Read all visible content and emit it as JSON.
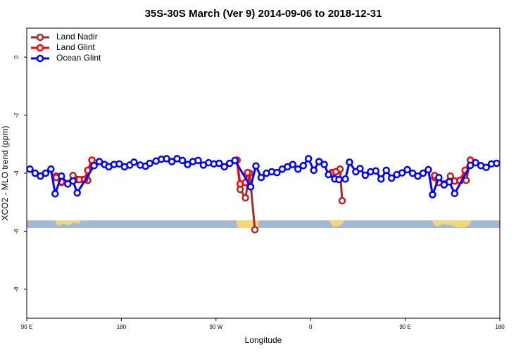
{
  "chart_data": {
    "type": "line",
    "title": "35S-30S March (Ver 9)   2014-09-06 to 2018-12-31",
    "xlabel": "Longitude",
    "ylabel": "XCO2 - MLO trend (ppm)",
    "xlim": [
      90,
      540
    ],
    "ylim": [
      -9,
      1
    ],
    "xticks": [
      {
        "value": 90,
        "label": "90 E"
      },
      180,
      {
        "value": 270,
        "label": "90 W"
      },
      {
        "value": 360,
        "label": "0"
      },
      {
        "value": 450,
        "label": "90 E"
      },
      {
        "value": 540,
        "label": "180"
      }
    ],
    "yticks": [
      0,
      -2,
      -4,
      -6,
      -8
    ],
    "legend": "top-left",
    "series": [
      {
        "name": "Land Nadir",
        "color": "#a52a2a",
        "x": [
          118,
          123,
          129,
          134,
          138,
          143,
          148,
          152,
          null,
          290,
          293,
          298,
          302,
          307,
          null,
          380,
          384,
          388,
          390,
          null,
          478,
          482,
          487,
          493,
          497,
          503,
          508,
          512
        ],
        "values": [
          -4.1,
          -4.32,
          -4.37,
          -4.08,
          -4.22,
          -4.22,
          -4.25,
          -3.55,
          null,
          -3.55,
          -4.56,
          -4.85,
          -4.0,
          -5.95,
          null,
          -3.98,
          -3.95,
          -3.86,
          -4.95,
          null,
          -4.15,
          -4.32,
          -4.37,
          -4.1,
          -4.27,
          -4.25,
          -4.25,
          -3.55
        ]
      },
      {
        "name": "Land Glint",
        "color": "#ff0000",
        "x": [
          118,
          123,
          140,
          145,
          148,
          152,
          null,
          290,
          293,
          298,
          300,
          null,
          380,
          384,
          null,
          478,
          482,
          497,
          502,
          507,
          512
        ],
        "values": [
          -4.15,
          -4.3,
          -4.22,
          -4.22,
          -3.9,
          -3.55,
          null,
          -3.55,
          -4.37,
          -4.32,
          -3.98,
          null,
          -4.0,
          -3.95,
          null,
          -4.08,
          -4.32,
          -4.27,
          -4.25,
          -3.9,
          -3.55
        ]
      },
      {
        "name": "Ocean Glint",
        "color": "#0000ff",
        "x": [
          93,
          98,
          103,
          108,
          113,
          117,
          123,
          129,
          134,
          138,
          154,
          159,
          164,
          168,
          173,
          178,
          183,
          188,
          192,
          198,
          203,
          207,
          213,
          218,
          223,
          228,
          233,
          238,
          243,
          248,
          253,
          258,
          263,
          268,
          273,
          278,
          283,
          288,
          303,
          308,
          313,
          318,
          323,
          328,
          333,
          338,
          343,
          348,
          353,
          358,
          363,
          368,
          373,
          377,
          383,
          387,
          393,
          397,
          403,
          407,
          412,
          417,
          422,
          427,
          432,
          437,
          442,
          447,
          452,
          457,
          462,
          467,
          472,
          476,
          482,
          487,
          492,
          497,
          512,
          517,
          522,
          527,
          532,
          537
        ],
        "values": [
          -3.86,
          -4.0,
          -4.1,
          -4.0,
          -3.86,
          -4.71,
          -4.1,
          -4.37,
          -4.27,
          -4.68,
          -3.74,
          -3.6,
          -3.7,
          -3.78,
          -3.7,
          -3.68,
          -3.78,
          -3.72,
          -3.62,
          -3.72,
          -3.76,
          -3.66,
          -3.58,
          -3.52,
          -3.5,
          -3.6,
          -3.5,
          -3.56,
          -3.7,
          -3.6,
          -3.56,
          -3.72,
          -3.64,
          -3.68,
          -3.66,
          -3.78,
          -3.66,
          -3.56,
          -4.47,
          -3.75,
          -4.15,
          -4.0,
          -3.95,
          -3.98,
          -3.86,
          -3.78,
          -3.7,
          -3.86,
          -3.74,
          -3.5,
          -3.9,
          -3.6,
          -3.7,
          -4.05,
          -4.2,
          -4.22,
          -4.2,
          -3.62,
          -3.95,
          -3.84,
          -4.07,
          -3.95,
          -3.92,
          -4.2,
          -3.9,
          -4.17,
          -4.05,
          -3.99,
          -3.88,
          -4.0,
          -4.1,
          -4.0,
          -3.88,
          -4.74,
          -4.15,
          -4.4,
          -4.3,
          -4.7,
          -3.73,
          -3.64,
          -3.74,
          -3.8,
          -3.68,
          -3.66
        ]
      }
    ]
  }
}
